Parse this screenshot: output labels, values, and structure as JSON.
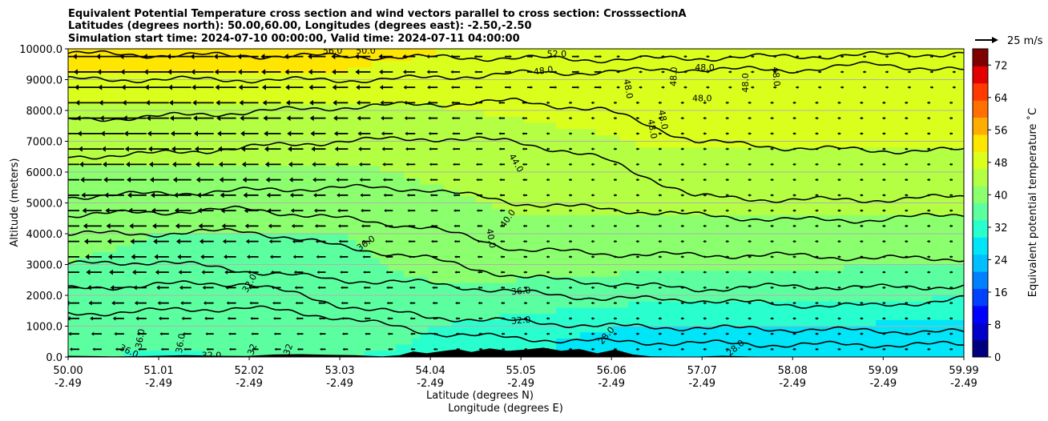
{
  "title": {
    "line1": "Equivalent Potential Temperature cross section and wind vectors parallel to cross section: CrosssectionA",
    "line2": "Latitudes (degrees north): 50.00,60.00, Longitudes (degrees east): -2.50,-2.50",
    "line3": "Simulation start time: 2024-07-10 00:00:00, Valid time: 2024-07-11 04:00:00"
  },
  "quiver_key": {
    "label": "25 m/s"
  },
  "colors": {
    "terrain": "#000000",
    "contour": "#000000",
    "grid": "#b0b0b0",
    "colormap": [
      "#00007f",
      "#0000c8",
      "#0000ff",
      "#0040ff",
      "#0080ff",
      "#00bfff",
      "#00e5f8",
      "#29ffce",
      "#5cffa0",
      "#8bff6e",
      "#b4ff43",
      "#dbff1c",
      "#ffe600",
      "#ffad00",
      "#ff7000",
      "#ff3a00",
      "#e30000",
      "#7f0000"
    ]
  },
  "chart_data": {
    "type": "heatmap",
    "xlabel": "Latitude (degrees N)",
    "xlabel2": "Longitude (degrees E)",
    "ylabel": "Altitude (meters)",
    "ylim": [
      0,
      10000
    ],
    "xlim": [
      50.0,
      59.99
    ],
    "x_ticks": [
      {
        "lat": "50.00",
        "lon": "-2.49",
        "v": 50.0
      },
      {
        "lat": "51.01",
        "lon": "-2.49",
        "v": 51.01
      },
      {
        "lat": "52.02",
        "lon": "-2.49",
        "v": 52.02
      },
      {
        "lat": "53.03",
        "lon": "-2.49",
        "v": 53.03
      },
      {
        "lat": "54.04",
        "lon": "-2.49",
        "v": 54.04
      },
      {
        "lat": "55.05",
        "lon": "-2.49",
        "v": 55.05
      },
      {
        "lat": "56.06",
        "lon": "-2.49",
        "v": 56.06
      },
      {
        "lat": "57.07",
        "lon": "-2.49",
        "v": 57.07
      },
      {
        "lat": "58.08",
        "lon": "-2.49",
        "v": 58.08
      },
      {
        "lat": "59.09",
        "lon": "-2.49",
        "v": 59.09
      },
      {
        "lat": "59.99",
        "lon": "-2.49",
        "v": 59.99
      }
    ],
    "y_ticks": [
      {
        "label": "0.0",
        "v": 0
      },
      {
        "label": "1000.0",
        "v": 1000
      },
      {
        "label": "2000.0",
        "v": 2000
      },
      {
        "label": "3000.0",
        "v": 3000
      },
      {
        "label": "4000.0",
        "v": 4000
      },
      {
        "label": "5000.0",
        "v": 5000
      },
      {
        "label": "6000.0",
        "v": 6000
      },
      {
        "label": "7000.0",
        "v": 7000
      },
      {
        "label": "8000.0",
        "v": 8000
      },
      {
        "label": "9000.0",
        "v": 9000
      },
      {
        "label": "10000.0",
        "v": 10000
      }
    ],
    "grid": "horizontal",
    "colorbar": {
      "label": "Equivalent potential temperature ˚C",
      "range": [
        0,
        76
      ],
      "ticks": [
        "0",
        "8",
        "16",
        "24",
        "32",
        "40",
        "48",
        "56",
        "64",
        "72"
      ]
    },
    "field_profile": {
      "comment_free_note": "",
      "lat": [
        50.0,
        51.0,
        52.0,
        53.0,
        53.5,
        54.0,
        55.0,
        56.0,
        56.5,
        57.0,
        58.0,
        59.0,
        59.99
      ],
      "levels_m": [
        0,
        500,
        1000,
        2000,
        3000,
        4000,
        5000,
        6000,
        7000,
        8000,
        9000,
        10000
      ],
      "theta_e": [
        [
          34,
          33,
          34,
          34,
          33,
          32,
          30,
          28,
          27,
          27,
          27,
          26,
          26
        ],
        [
          36,
          35,
          35,
          35,
          35,
          33,
          31,
          28,
          27,
          27,
          27,
          27,
          26
        ],
        [
          37,
          37,
          36,
          36,
          36,
          34,
          32,
          30,
          29,
          29,
          29,
          29,
          28
        ],
        [
          37,
          37,
          36,
          35,
          37,
          37,
          37,
          36,
          35,
          35,
          35,
          35,
          34
        ],
        [
          38,
          37,
          36,
          36,
          38,
          39,
          39,
          39,
          39,
          39,
          39,
          38,
          38
        ],
        [
          39,
          38,
          38,
          38,
          39,
          40,
          41,
          41,
          41,
          41,
          41,
          41,
          41
        ],
        [
          41,
          40,
          40,
          40,
          40,
          41,
          43,
          43,
          43,
          43,
          43,
          43,
          43
        ],
        [
          42,
          42,
          42,
          42,
          42,
          43,
          44,
          45,
          45,
          45,
          45,
          45,
          45
        ],
        [
          44,
          44,
          44,
          44,
          44,
          45,
          45,
          46,
          47,
          47,
          47,
          47,
          47
        ],
        [
          46,
          46,
          46,
          46,
          46,
          46,
          47,
          48,
          49,
          49,
          49,
          49,
          49
        ],
        [
          50,
          50,
          50,
          50,
          49,
          49,
          48,
          48,
          48,
          49,
          49,
          49,
          49
        ],
        [
          54,
          53,
          53,
          53,
          52,
          51,
          50,
          49,
          49,
          49,
          49,
          49,
          49
        ]
      ]
    },
    "contour_labels": [
      {
        "text": "52.0",
        "lat": 55.45,
        "alt": 9850,
        "rot": 0
      },
      {
        "text": "56.0",
        "lat": 52.95,
        "alt": 9950,
        "rot": 0
      },
      {
        "text": "50.0",
        "lat": 53.32,
        "alt": 9950,
        "rot": 0
      },
      {
        "text": "48.0",
        "lat": 55.3,
        "alt": 9300,
        "rot": -8
      },
      {
        "text": "48.0",
        "lat": 57.1,
        "alt": 9400,
        "rot": 0
      },
      {
        "text": "48.0",
        "lat": 57.07,
        "alt": 8400,
        "rot": 0
      },
      {
        "text": "48.0",
        "lat": 57.55,
        "alt": 8900,
        "rot": -90
      },
      {
        "text": "48.0",
        "lat": 57.9,
        "alt": 9100,
        "rot": 85
      },
      {
        "text": "48.0",
        "lat": 56.25,
        "alt": 8700,
        "rot": 80
      },
      {
        "text": "48.0",
        "lat": 56.64,
        "alt": 7700,
        "rot": 80
      },
      {
        "text": "48.0",
        "lat": 56.52,
        "alt": 7400,
        "rot": 80
      },
      {
        "text": "48.0",
        "lat": 56.75,
        "alt": 9100,
        "rot": -88
      },
      {
        "text": "44.0",
        "lat": 55.0,
        "alt": 6300,
        "rot": 60
      },
      {
        "text": "40.0",
        "lat": 54.9,
        "alt": 4500,
        "rot": -55
      },
      {
        "text": "40.0",
        "lat": 54.72,
        "alt": 3850,
        "rot": 80
      },
      {
        "text": "36.0",
        "lat": 53.32,
        "alt": 3700,
        "rot": -35
      },
      {
        "text": "36.0",
        "lat": 55.05,
        "alt": 2150,
        "rot": -5
      },
      {
        "text": "32.0",
        "lat": 52.02,
        "alt": 2400,
        "rot": -60
      },
      {
        "text": "32.0",
        "lat": 55.05,
        "alt": 1200,
        "rot": -5
      },
      {
        "text": "28.0",
        "lat": 56.0,
        "alt": 700,
        "rot": -50
      },
      {
        "text": "28.0",
        "lat": 57.44,
        "alt": 300,
        "rot": -40
      },
      {
        "text": "36.0",
        "lat": 50.8,
        "alt": 600,
        "rot": -80
      },
      {
        "text": "36.0",
        "lat": 51.25,
        "alt": 450,
        "rot": -80
      },
      {
        "text": "36.0",
        "lat": 50.68,
        "alt": 200,
        "rot": 25
      },
      {
        "text": "32.0",
        "lat": 51.6,
        "alt": 60,
        "rot": 0
      },
      {
        "text": "32",
        "lat": 52.05,
        "alt": 250,
        "rot": -70
      },
      {
        "text": "32",
        "lat": 52.45,
        "alt": 250,
        "rot": -70
      }
    ]
  }
}
